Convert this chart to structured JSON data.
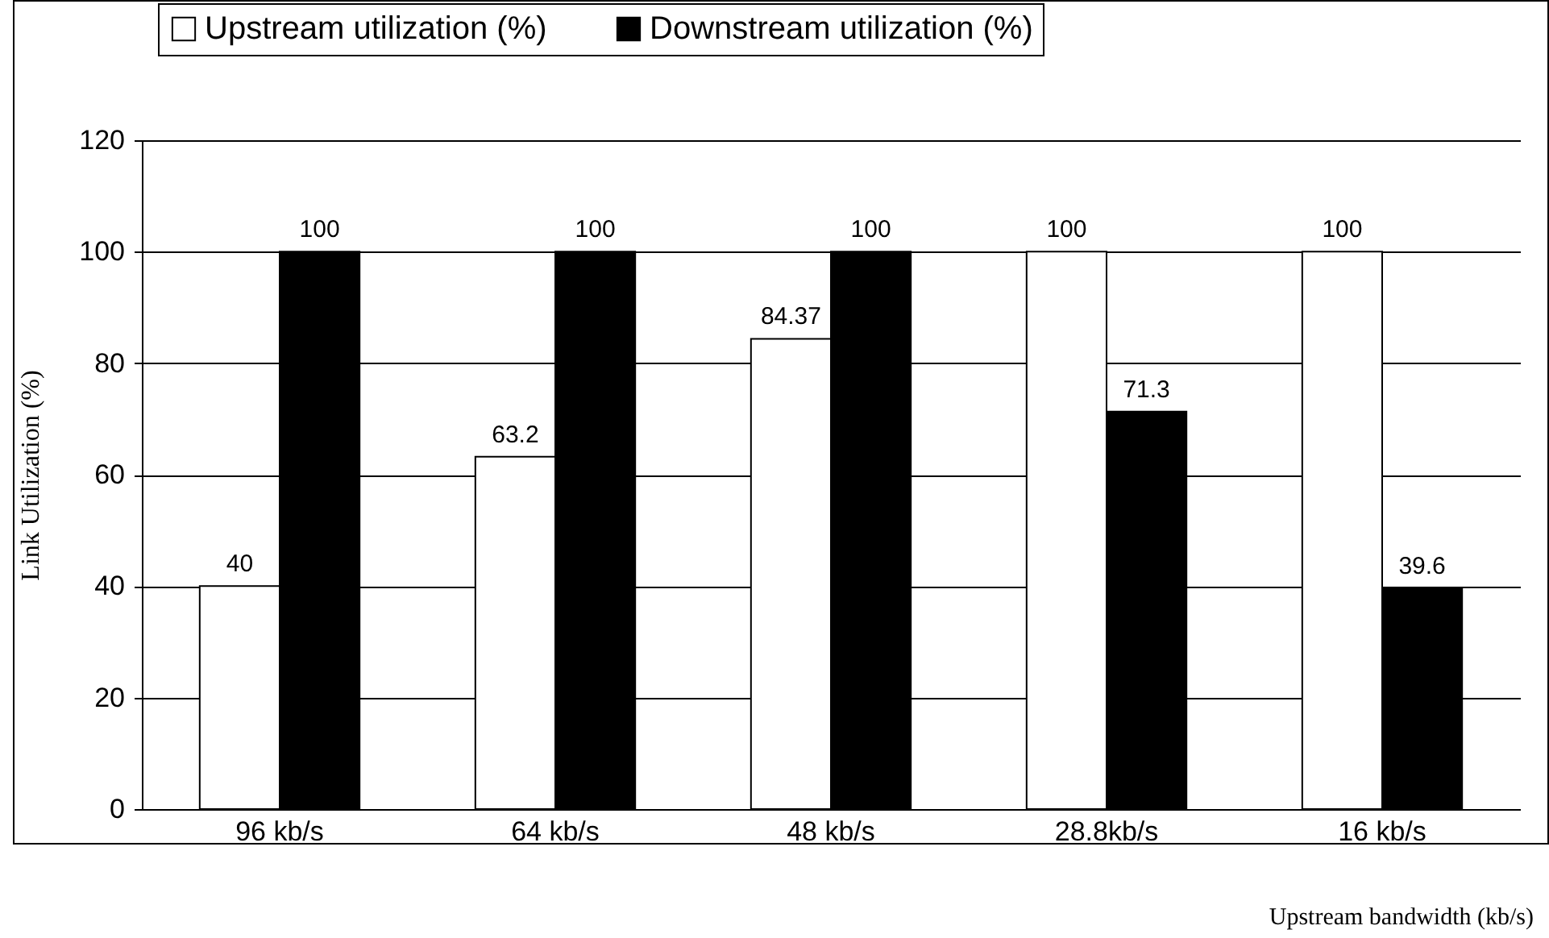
{
  "chart_data": {
    "type": "bar",
    "xlabel": "Upstream bandwidth (kb/s)",
    "ylabel": "Link Utilization (%)",
    "categories": [
      "96 kb/s",
      "64 kb/s",
      "48 kb/s",
      "28.8kb/s",
      "16 kb/s"
    ],
    "series": [
      {
        "name": "Upstream utilization (%)",
        "color": "#ffffff",
        "values": [
          40,
          63.2,
          84.37,
          100,
          100
        ]
      },
      {
        "name": "Downstream utilization (%)",
        "color": "#000000",
        "values": [
          100,
          100,
          100,
          71.3,
          39.6
        ]
      }
    ],
    "ylim": [
      0,
      120
    ],
    "yticks": [
      0,
      20,
      40,
      60,
      80,
      100,
      120
    ],
    "grid": "y",
    "legend": "top",
    "data_labels": true
  }
}
